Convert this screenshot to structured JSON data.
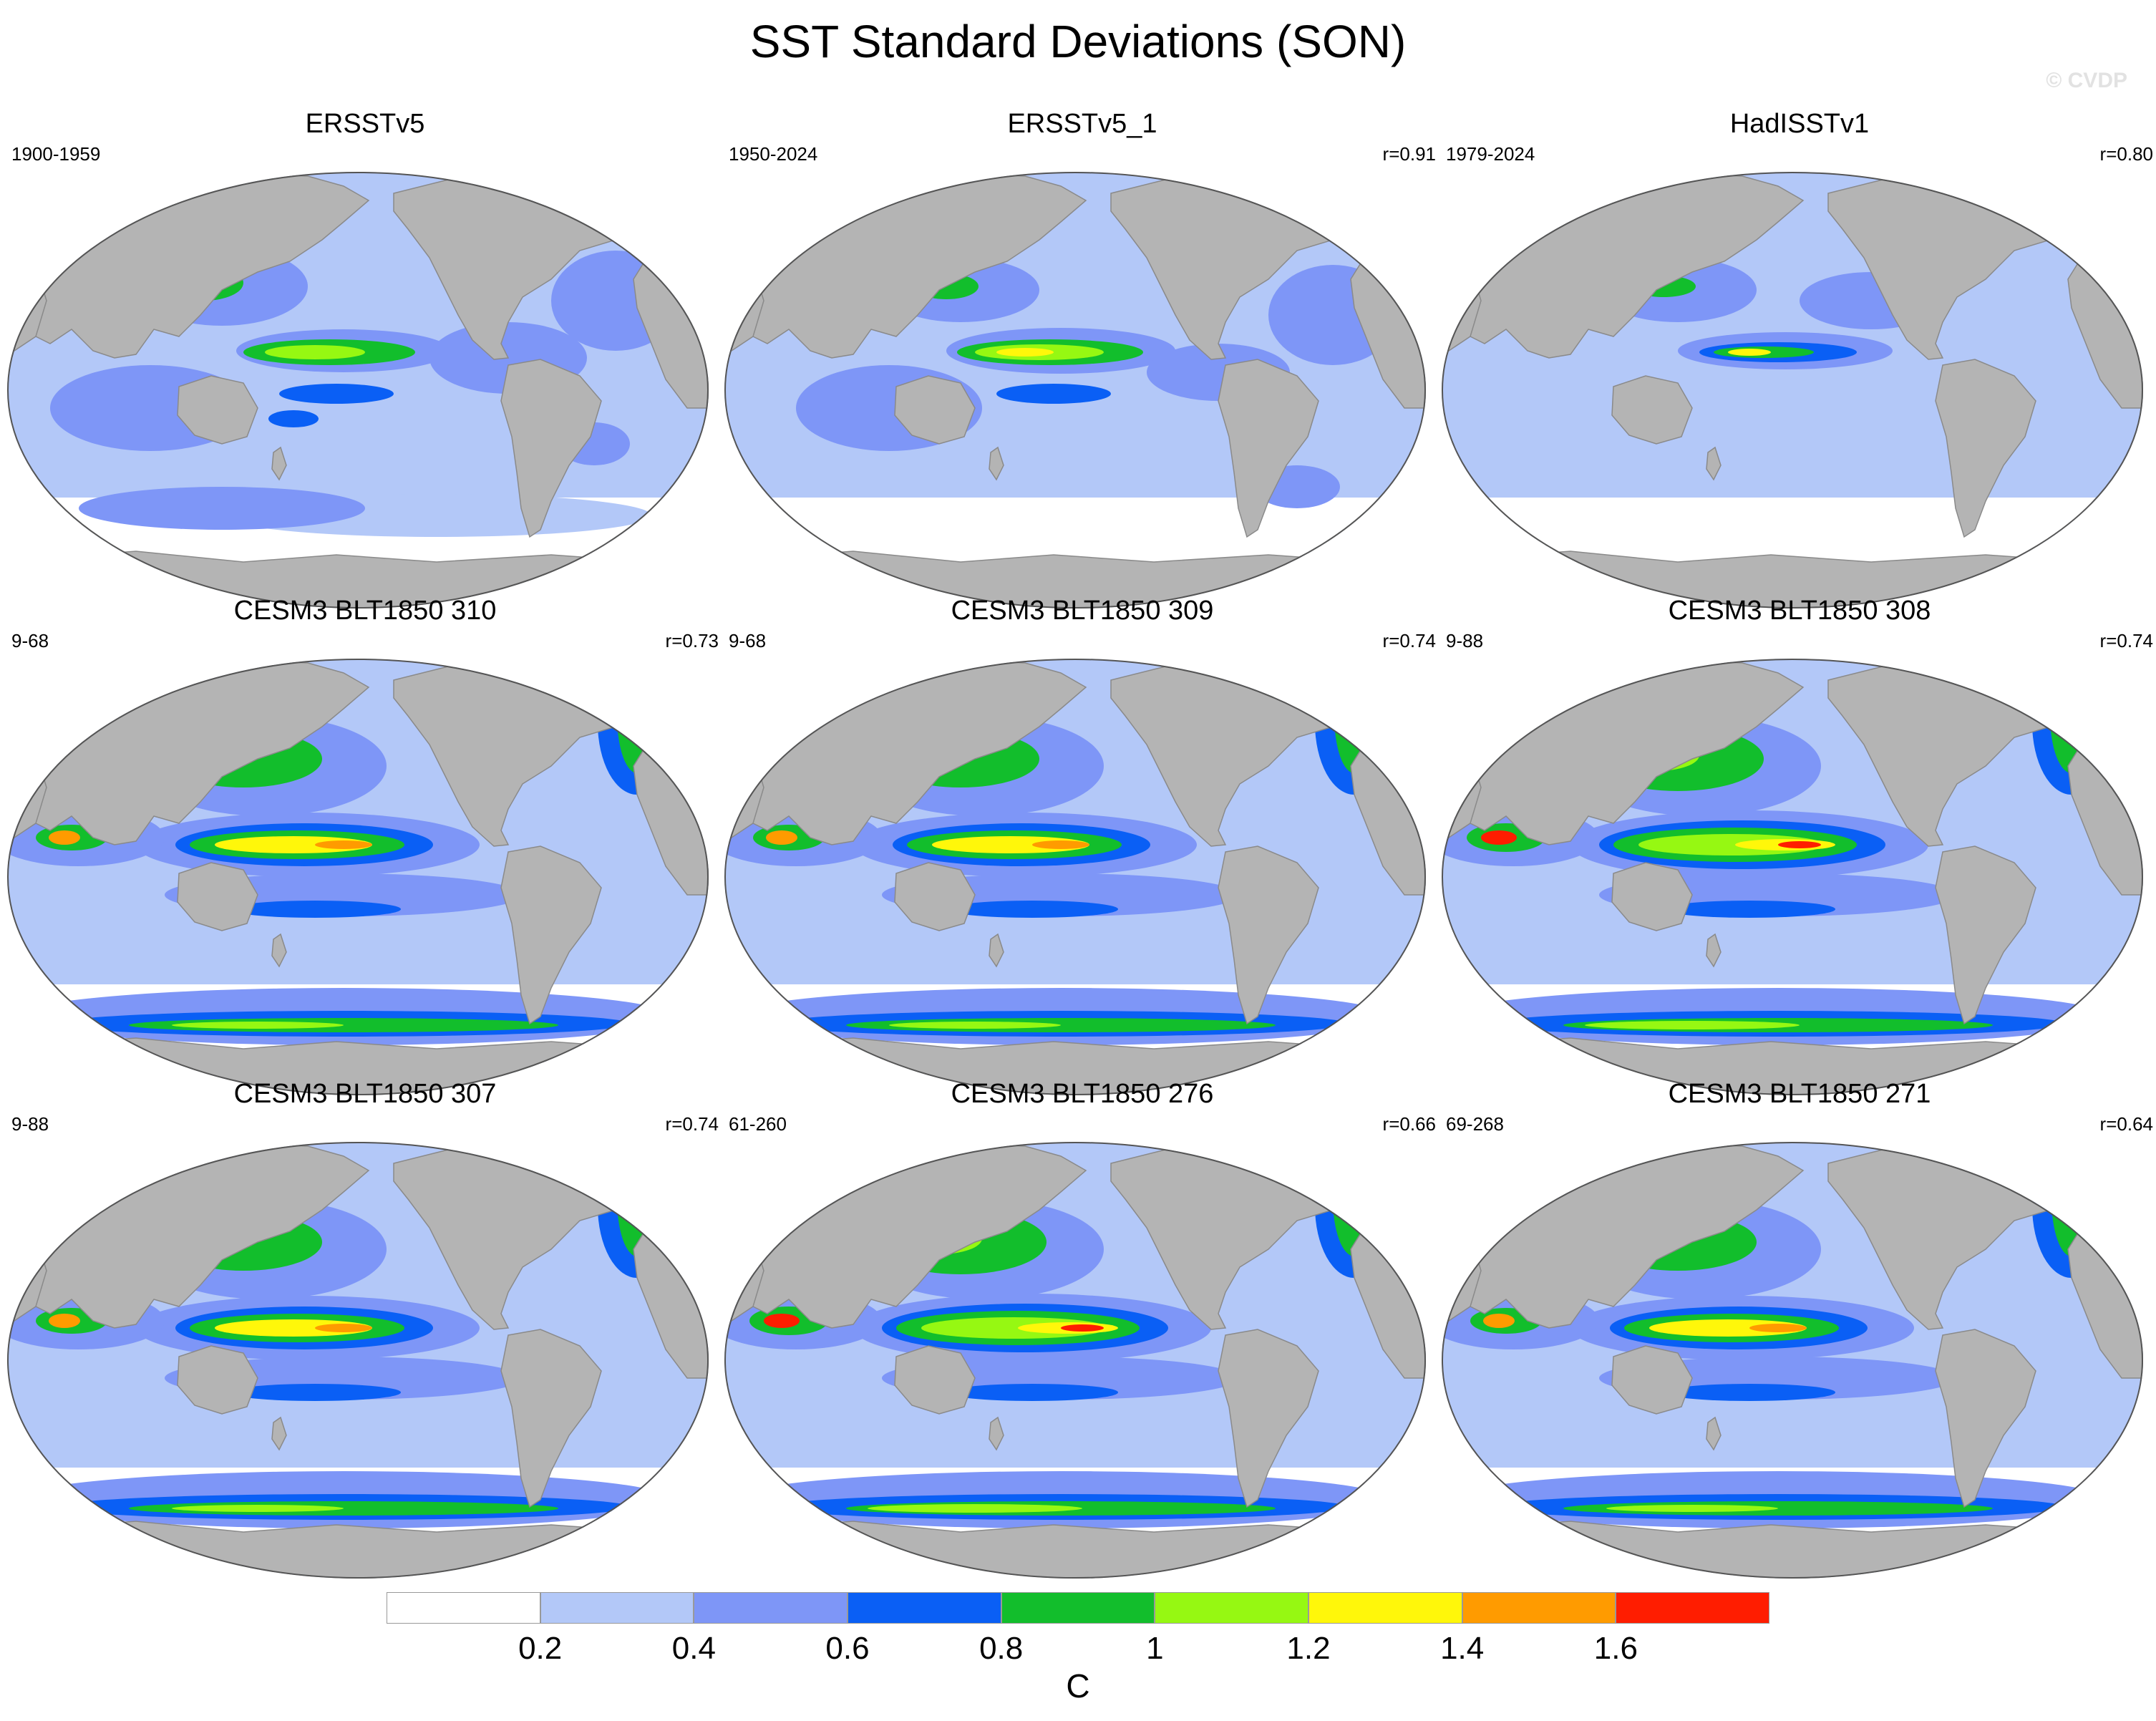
{
  "title": "SST Standard Deviations (SON)",
  "watermark": "© CVDP",
  "colors": {
    "land": "#b4b4b4",
    "levels": [
      "#ffffff",
      "#b3c8f8",
      "#7e96f7",
      "#0a5ff5",
      "#12be2c",
      "#96f812",
      "#fff70a",
      "#ff9b00",
      "#ff1d00"
    ]
  },
  "panels": [
    {
      "title": "ERSSTv5",
      "left": "1900-1959",
      "right": "",
      "variant": "obs1"
    },
    {
      "title": "ERSSTv5_1",
      "left": "1950-2024",
      "right": "r=0.91",
      "variant": "obs2"
    },
    {
      "title": "HadISSTv1",
      "left": "1979-2024",
      "right": "r=0.80",
      "variant": "obs3"
    },
    {
      "title": "CESM3 BLT1850 310",
      "left": "9-68",
      "right": "r=0.73",
      "variant": "model"
    },
    {
      "title": "CESM3 BLT1850 309",
      "left": "9-68",
      "right": "r=0.74",
      "variant": "model"
    },
    {
      "title": "CESM3 BLT1850 308",
      "left": "9-88",
      "right": "r=0.74",
      "variant": "modelStrong"
    },
    {
      "title": "CESM3 BLT1850 307",
      "left": "9-88",
      "right": "r=0.74",
      "variant": "model"
    },
    {
      "title": "CESM3 BLT1850 276",
      "left": "61-260",
      "right": "r=0.66",
      "variant": "modelStrong"
    },
    {
      "title": "CESM3 BLT1850 271",
      "left": "69-268",
      "right": "r=0.64",
      "variant": "model"
    }
  ],
  "colorbar": {
    "ticks": [
      "0.2",
      "0.4",
      "0.6",
      "0.8",
      "1",
      "1.2",
      "1.4",
      "1.6"
    ],
    "unit": "C"
  }
}
